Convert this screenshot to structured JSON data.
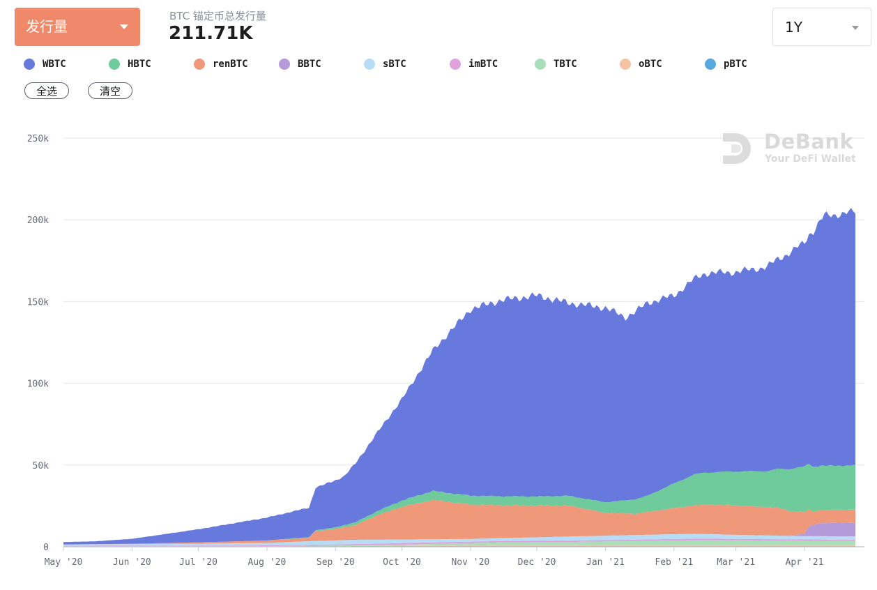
{
  "header": {
    "metric_select": "发行量",
    "summary_label": "BTC 锚定币总发行量",
    "summary_value": "211.71K",
    "range_select": "1Y"
  },
  "legend": [
    {
      "name": "WBTC",
      "color": "#6779dc"
    },
    {
      "name": "HBTC",
      "color": "#6fcb9c"
    },
    {
      "name": "renBTC",
      "color": "#f0987a"
    },
    {
      "name": "BBTC",
      "color": "#b59ad9"
    },
    {
      "name": "sBTC",
      "color": "#b7dcf6"
    },
    {
      "name": "imBTC",
      "color": "#dea3df"
    },
    {
      "name": "TBTC",
      "color": "#a8dfb8"
    },
    {
      "name": "oBTC",
      "color": "#f5c3a4"
    },
    {
      "name": "pBTC",
      "color": "#55a9df"
    }
  ],
  "buttons": {
    "select_all": "全选",
    "clear": "清空"
  },
  "watermark": {
    "name": "DeBank",
    "tagline": "Your DeFi Wallet"
  },
  "chart_data": {
    "type": "area",
    "stacked": true,
    "x_tick_labels": [
      "May '20",
      "Jun '20",
      "Jul '20",
      "Aug '20",
      "Sep '20",
      "Oct '20",
      "Nov '20",
      "Dec '20",
      "Jan '21",
      "Feb '21",
      "Mar '21",
      "Apr '21"
    ],
    "y_tick_labels": [
      "0",
      "50k",
      "100k",
      "150k",
      "200k",
      "250k"
    ],
    "ylim": [
      0,
      250000
    ],
    "xlim": [
      "2020-05-01",
      "2021-04-24"
    ],
    "grid": true,
    "legend_position": "top",
    "series": [
      {
        "name": "pBTC",
        "color": "#55a9df",
        "points": [
          [
            "2020-05-01",
            300
          ],
          [
            "2020-07-01",
            300
          ],
          [
            "2020-09-01",
            400
          ],
          [
            "2020-11-01",
            500
          ],
          [
            "2021-01-01",
            500
          ],
          [
            "2021-04-24",
            500
          ]
        ]
      },
      {
        "name": "oBTC",
        "color": "#f5c3a4",
        "points": [
          [
            "2020-05-01",
            0
          ],
          [
            "2020-09-01",
            0
          ],
          [
            "2020-10-15",
            300
          ],
          [
            "2021-01-01",
            500
          ],
          [
            "2021-04-24",
            500
          ]
        ]
      },
      {
        "name": "TBTC",
        "color": "#a8dfb8",
        "points": [
          [
            "2020-05-01",
            0
          ],
          [
            "2020-08-01",
            0
          ],
          [
            "2020-08-15",
            200
          ],
          [
            "2020-10-01",
            600
          ],
          [
            "2020-11-15",
            1800
          ],
          [
            "2020-12-15",
            2000
          ],
          [
            "2021-01-15",
            2500
          ],
          [
            "2021-02-15",
            3000
          ],
          [
            "2021-03-15",
            2800
          ],
          [
            "2021-04-24",
            2500
          ]
        ]
      },
      {
        "name": "imBTC",
        "color": "#dea3df",
        "points": [
          [
            "2020-05-01",
            300
          ],
          [
            "2020-07-01",
            400
          ],
          [
            "2020-08-01",
            500
          ],
          [
            "2020-09-01",
            700
          ],
          [
            "2020-10-01",
            1000
          ],
          [
            "2020-11-01",
            900
          ],
          [
            "2020-12-01",
            800
          ],
          [
            "2021-01-01",
            800
          ],
          [
            "2021-02-01",
            1000
          ],
          [
            "2021-03-01",
            900
          ],
          [
            "2021-04-24",
            800
          ]
        ]
      },
      {
        "name": "sBTC",
        "color": "#b7dcf6",
        "points": [
          [
            "2020-05-01",
            800
          ],
          [
            "2020-06-01",
            1000
          ],
          [
            "2020-07-01",
            1200
          ],
          [
            "2020-08-01",
            1500
          ],
          [
            "2020-08-22",
            2200
          ],
          [
            "2020-09-10",
            2600
          ],
          [
            "2020-10-01",
            2200
          ],
          [
            "2020-11-01",
            1600
          ],
          [
            "2020-11-25",
            2000
          ],
          [
            "2020-12-15",
            2500
          ],
          [
            "2021-01-15",
            2800
          ],
          [
            "2021-02-10",
            3000
          ],
          [
            "2021-03-01",
            2500
          ],
          [
            "2021-04-01",
            2000
          ],
          [
            "2021-04-24",
            2000
          ]
        ]
      },
      {
        "name": "BBTC",
        "color": "#b59ad9",
        "points": [
          [
            "2020-05-01",
            0
          ],
          [
            "2021-03-25",
            0
          ],
          [
            "2021-04-01",
            1500
          ],
          [
            "2021-04-03",
            6000
          ],
          [
            "2021-04-08",
            8000
          ],
          [
            "2021-04-24",
            8500
          ]
        ]
      },
      {
        "name": "renBTC",
        "color": "#f0987a",
        "points": [
          [
            "2020-05-01",
            0
          ],
          [
            "2020-06-01",
            200
          ],
          [
            "2020-07-01",
            800
          ],
          [
            "2020-08-01",
            1500
          ],
          [
            "2020-08-20",
            2000
          ],
          [
            "2020-08-23",
            6000
          ],
          [
            "2020-09-01",
            7000
          ],
          [
            "2020-09-10",
            9000
          ],
          [
            "2020-09-20",
            15000
          ],
          [
            "2020-10-01",
            20000
          ],
          [
            "2020-10-15",
            24000
          ],
          [
            "2020-11-01",
            21000
          ],
          [
            "2020-11-15",
            20000
          ],
          [
            "2020-12-15",
            19000
          ],
          [
            "2021-01-01",
            14000
          ],
          [
            "2021-01-15",
            13000
          ],
          [
            "2021-02-01",
            16000
          ],
          [
            "2021-02-15",
            18000
          ],
          [
            "2021-03-01",
            18000
          ],
          [
            "2021-03-20",
            17000
          ],
          [
            "2021-04-01",
            13000
          ],
          [
            "2021-04-05",
            8000
          ],
          [
            "2021-04-24",
            8000
          ]
        ]
      },
      {
        "name": "HBTC",
        "color": "#6fcb9c",
        "points": [
          [
            "2020-05-01",
            0
          ],
          [
            "2020-08-01",
            0
          ],
          [
            "2020-08-20",
            500
          ],
          [
            "2020-09-01",
            1000
          ],
          [
            "2020-09-20",
            2500
          ],
          [
            "2020-10-15",
            5500
          ],
          [
            "2020-11-01",
            5500
          ],
          [
            "2020-12-01",
            5500
          ],
          [
            "2021-01-01",
            6500
          ],
          [
            "2021-01-10",
            8000
          ],
          [
            "2021-01-20",
            10000
          ],
          [
            "2021-02-01",
            15000
          ],
          [
            "2021-02-10",
            19000
          ],
          [
            "2021-02-20",
            20000
          ],
          [
            "2021-03-15",
            22000
          ],
          [
            "2021-04-01",
            28000
          ],
          [
            "2021-04-10",
            27000
          ],
          [
            "2021-04-24",
            27000
          ]
        ]
      },
      {
        "name": "WBTC",
        "color": "#6779dc",
        "points": [
          [
            "2020-05-01",
            1500
          ],
          [
            "2020-05-15",
            1700
          ],
          [
            "2020-06-01",
            3000
          ],
          [
            "2020-07-01",
            8000
          ],
          [
            "2020-08-01",
            14000
          ],
          [
            "2020-08-15",
            17000
          ],
          [
            "2020-08-20",
            18000
          ],
          [
            "2020-08-23",
            26000
          ],
          [
            "2020-09-05",
            30000
          ],
          [
            "2020-09-15",
            42000
          ],
          [
            "2020-10-01",
            62000
          ],
          [
            "2020-10-15",
            86000
          ],
          [
            "2020-11-01",
            114000
          ],
          [
            "2020-11-15",
            120000
          ],
          [
            "2020-12-01",
            123000
          ],
          [
            "2020-12-15",
            118000
          ],
          [
            "2021-01-01",
            119000
          ],
          [
            "2021-01-10",
            112000
          ],
          [
            "2021-01-20",
            118000
          ],
          [
            "2021-02-01",
            115000
          ],
          [
            "2021-02-15",
            122000
          ],
          [
            "2021-03-01",
            122000
          ],
          [
            "2021-03-15",
            125000
          ],
          [
            "2021-04-01",
            137000
          ],
          [
            "2021-04-10",
            153000
          ],
          [
            "2021-04-24",
            155000
          ]
        ]
      }
    ]
  }
}
